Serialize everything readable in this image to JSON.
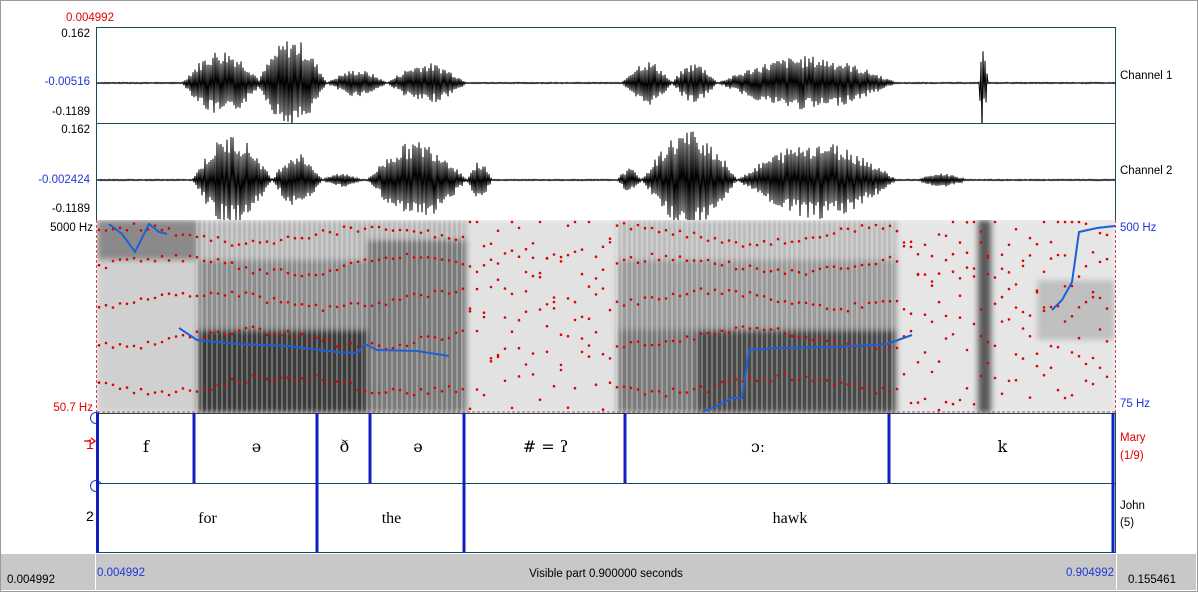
{
  "top_time": "0.004992",
  "channel1": {
    "max": "0.162",
    "mid": "-0.00516",
    "min": "-0.1189",
    "label": "Channel 1"
  },
  "channel2": {
    "max": "0.162",
    "mid": "-0.002424",
    "min": "-0.1189",
    "label": "Channel 2"
  },
  "spectrogram": {
    "freq_top": "5000 Hz",
    "freq_bottom": "50.7 Hz",
    "pitch_top": "500 Hz",
    "pitch_bottom": "75 Hz"
  },
  "tier1": {
    "number": "1",
    "name": "Mary",
    "count": "(1/9)",
    "intervals": [
      "f",
      "ə",
      "ð",
      "ə",
      "# = ʔ",
      "ɔː",
      "k"
    ]
  },
  "tier2": {
    "number": "2",
    "name": "John",
    "count": "(5)",
    "intervals": [
      "for",
      "the",
      "hawk"
    ]
  },
  "bottom": {
    "window_start": "0.004992",
    "visible_start": "0.004992",
    "visible_text": "Visible part 0.900000 seconds",
    "visible_end": "0.904992",
    "window_end": "0.155461"
  },
  "colors": {
    "accent": "#1f37d6",
    "red": "#e00000",
    "pitch": "#1e5fd8",
    "formant": "#e00000"
  }
}
